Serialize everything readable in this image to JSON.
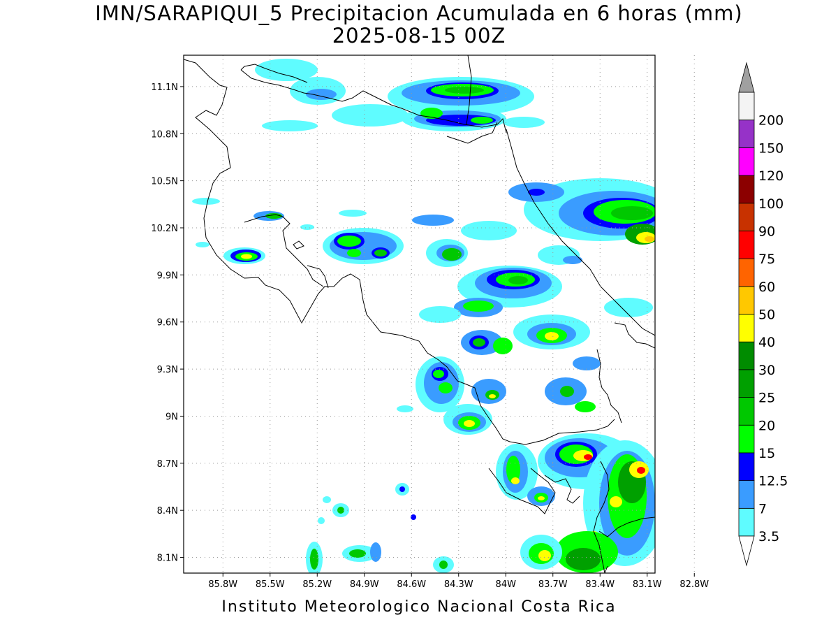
{
  "title": {
    "line1": "IMN/SARAPIQUI_5 Precipitacion Acumulada en 6 horas (mm)",
    "line2": "2025-08-15 00Z"
  },
  "footer": "Instituto Meteorologico Nacional Costa Rica",
  "map": {
    "lat_range": [
      8.0,
      11.3
    ],
    "lon_range": [
      -86.05,
      -83.05
    ],
    "lat_ticks": [
      {
        "value": 11.1,
        "label": "11.1N"
      },
      {
        "value": 10.8,
        "label": "10.8N"
      },
      {
        "value": 10.5,
        "label": "10.5N"
      },
      {
        "value": 10.2,
        "label": "10.2N"
      },
      {
        "value": 9.9,
        "label": "9.9N"
      },
      {
        "value": 9.6,
        "label": "9.6N"
      },
      {
        "value": 9.3,
        "label": "9.3N"
      },
      {
        "value": 9.0,
        "label": "9N"
      },
      {
        "value": 8.7,
        "label": "8.7N"
      },
      {
        "value": 8.4,
        "label": "8.4N"
      },
      {
        "value": 8.1,
        "label": "8.1N"
      }
    ],
    "lon_ticks": [
      {
        "value": -85.8,
        "label": "85.8W"
      },
      {
        "value": -85.5,
        "label": "85.5W"
      },
      {
        "value": -85.2,
        "label": "85.2W"
      },
      {
        "value": -84.9,
        "label": "84.9W"
      },
      {
        "value": -84.6,
        "label": "84.6W"
      },
      {
        "value": -84.3,
        "label": "84.3W"
      },
      {
        "value": -84.0,
        "label": "84W"
      },
      {
        "value": -83.7,
        "label": "83.7W"
      },
      {
        "value": -83.4,
        "label": "83.4W"
      },
      {
        "value": -83.1,
        "label": "83.1W"
      },
      {
        "value": -82.8,
        "label": "82.8W"
      }
    ],
    "grid": "dotted"
  },
  "colorbar": {
    "levels": [
      {
        "label": "3.5",
        "color": "#5ffcff"
      },
      {
        "label": "7",
        "color": "#3a9cff"
      },
      {
        "label": "12.5",
        "color": "#0000ff"
      },
      {
        "label": "15",
        "color": "#00ff00"
      },
      {
        "label": "20",
        "color": "#00c800"
      },
      {
        "label": "25",
        "color": "#00a000"
      },
      {
        "label": "30",
        "color": "#008c00"
      },
      {
        "label": "40",
        "color": "#ffff00"
      },
      {
        "label": "50",
        "color": "#ffc800"
      },
      {
        "label": "60",
        "color": "#ff6400"
      },
      {
        "label": "75",
        "color": "#ff0000"
      },
      {
        "label": "90",
        "color": "#c83200"
      },
      {
        "label": "100",
        "color": "#8c0000"
      },
      {
        "label": "120",
        "color": "#ff00ff"
      },
      {
        "label": "150",
        "color": "#9632c8"
      },
      {
        "label": "200",
        "color": "#f4f4f4"
      }
    ],
    "top_arrow_color": "#a0a0a0",
    "bottom_arrow_color": "#ffffff"
  }
}
